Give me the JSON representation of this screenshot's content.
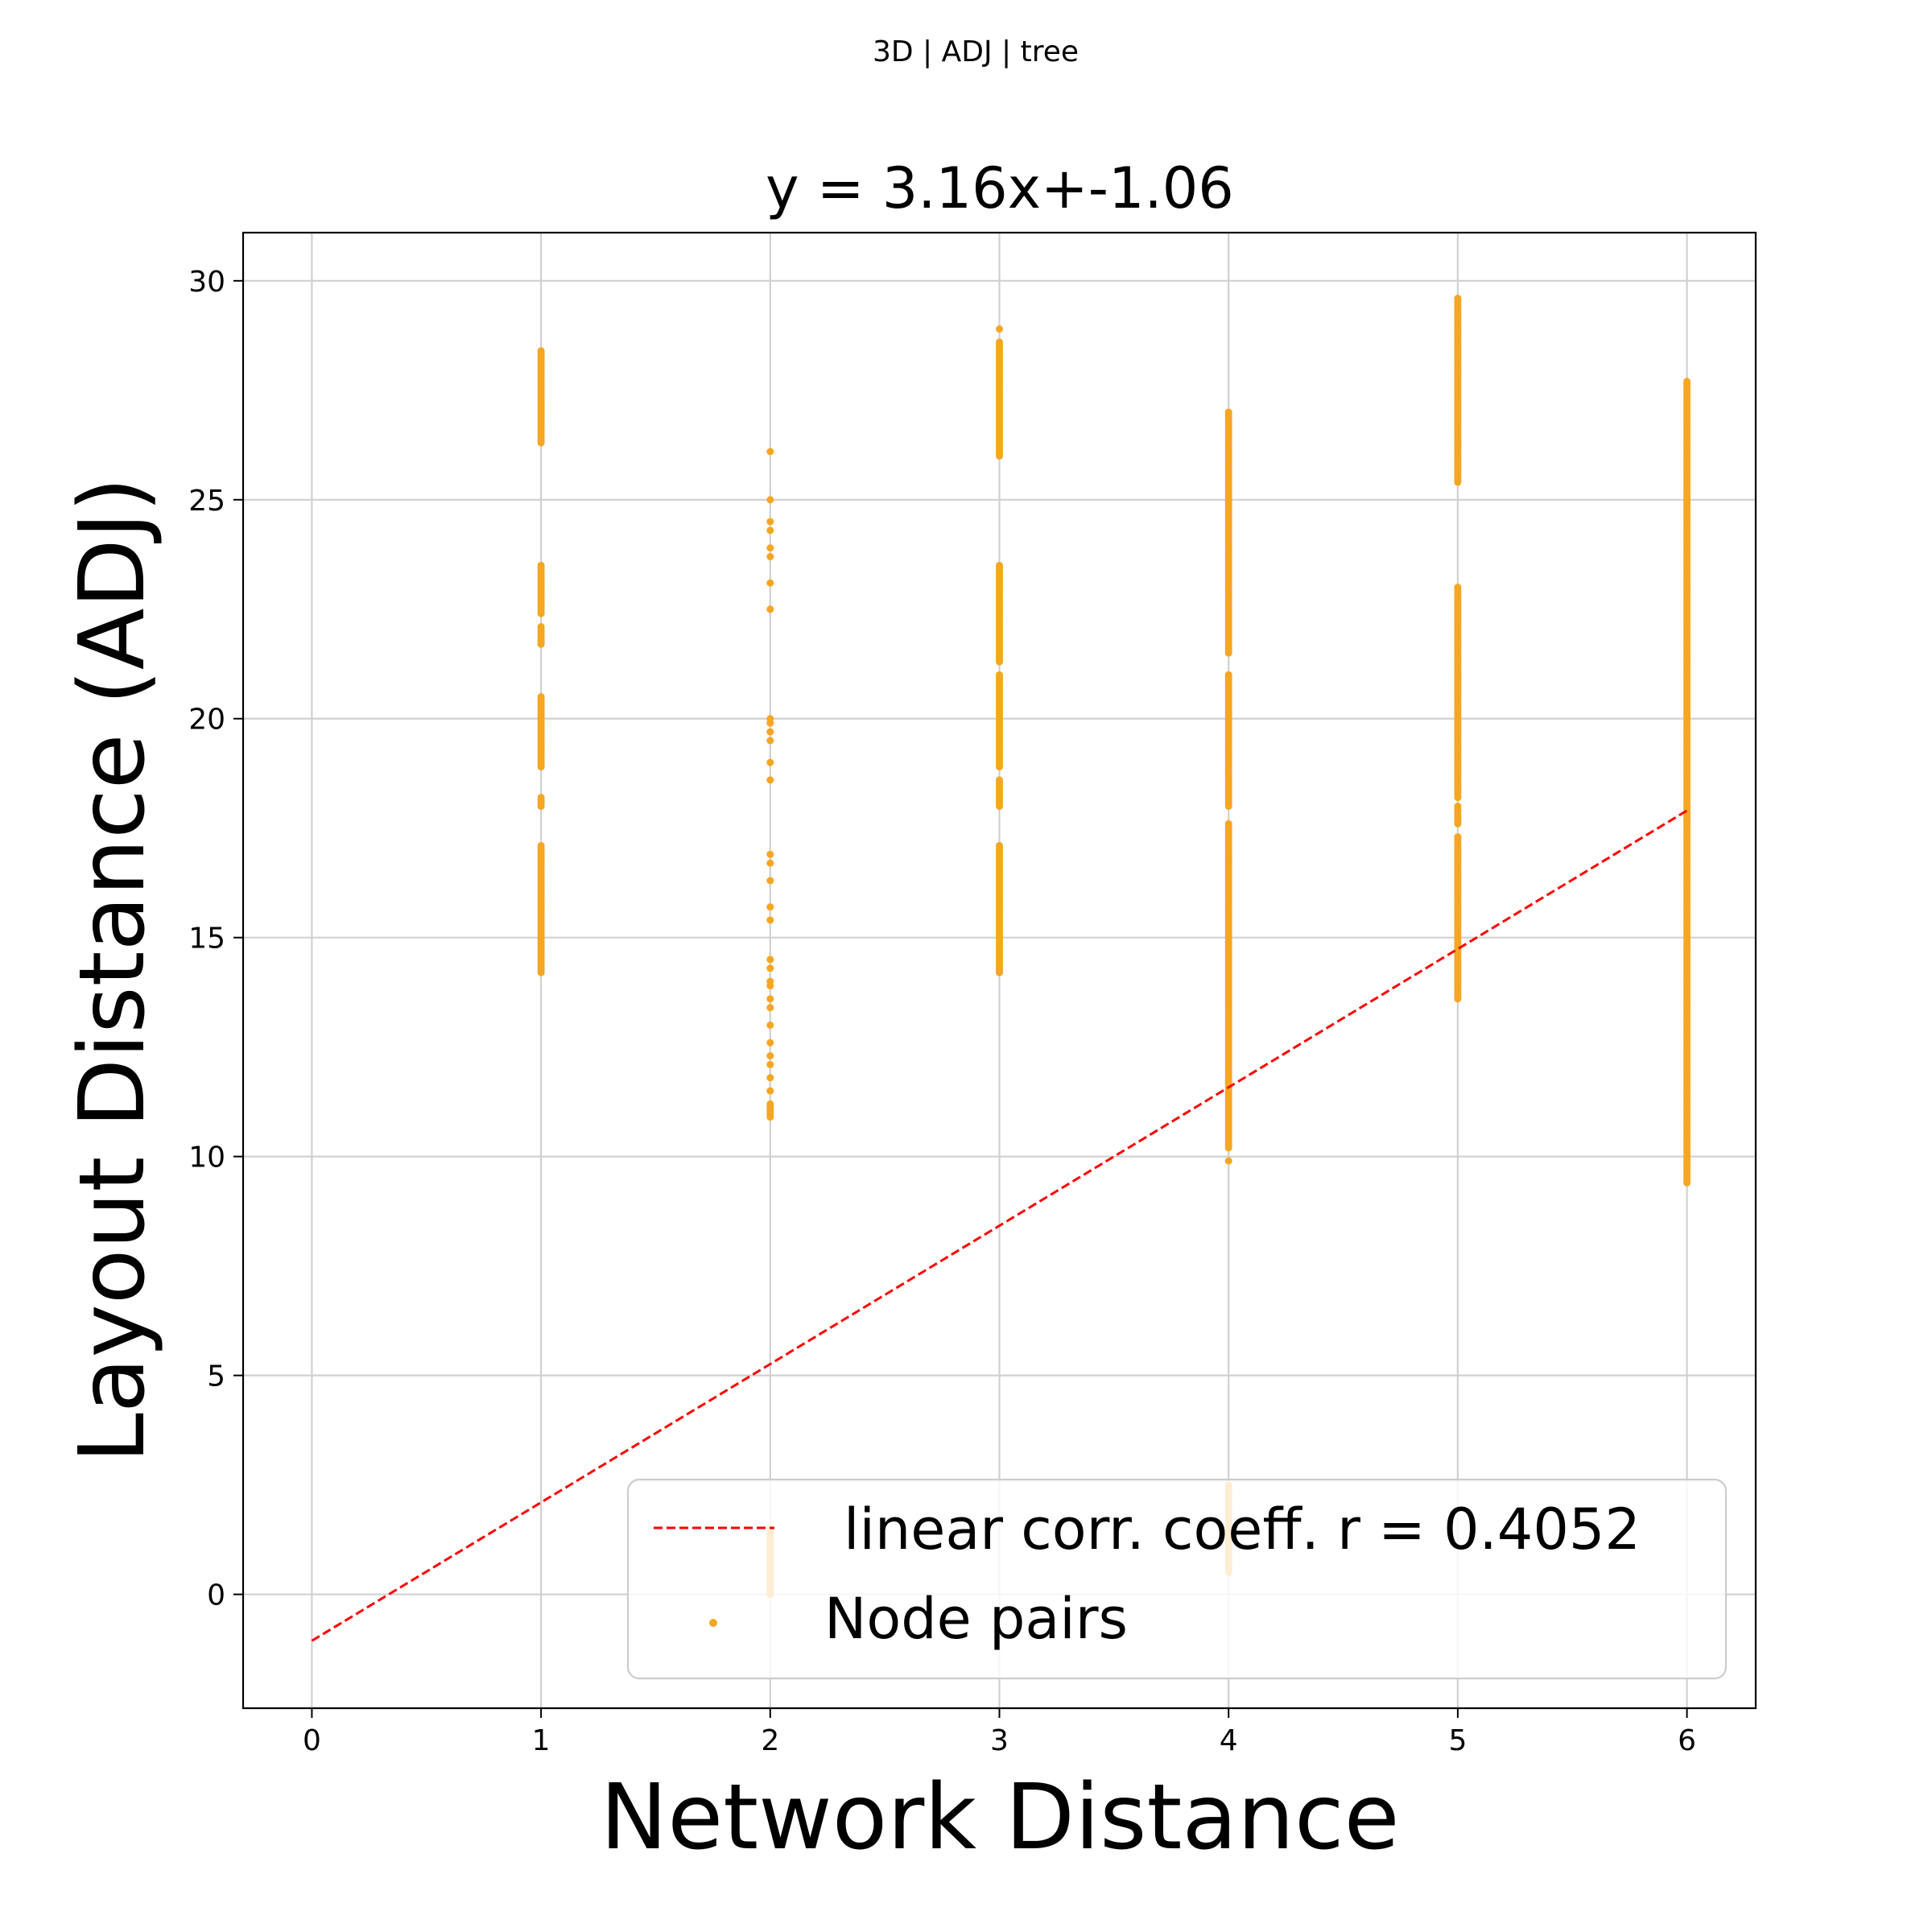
{
  "figure": {
    "suptitle": "3D | ADJ | tree"
  },
  "chart_data": {
    "type": "scatter",
    "title": "y = 3.16x+-1.06",
    "xlabel": "Network Distance",
    "ylabel": "Layout Distance (ADJ)",
    "xlim": [
      -0.3,
      6.3
    ],
    "ylim": [
      -2.6,
      31.1
    ],
    "xticks": [
      0,
      1,
      2,
      3,
      4,
      5,
      6
    ],
    "yticks": [
      0,
      5,
      10,
      15,
      20,
      25,
      30
    ],
    "grid": true,
    "legend_position": "lower-right",
    "colors": {
      "points": "#f5a623",
      "fit": "#ff0000"
    },
    "series": [
      {
        "name": "Node pairs",
        "style": "scatter",
        "columns": [
          {
            "x": 1,
            "ranges": [
              [
                14.2,
                17.1
              ],
              [
                18.0,
                18.2
              ],
              [
                18.9,
                20.5
              ],
              [
                21.7,
                22.1
              ],
              [
                22.4,
                23.5
              ],
              [
                26.3,
                28.4
              ]
            ],
            "points": []
          },
          {
            "x": 2,
            "ranges": [
              [
                0.0,
                1.5
              ],
              [
                10.9,
                11.2
              ]
            ],
            "points": [
              11.5,
              11.8,
              12.1,
              12.3,
              12.6,
              13.0,
              13.4,
              13.6,
              13.9,
              14.0,
              14.3,
              14.5,
              15.4,
              15.7,
              16.3,
              16.7,
              16.9,
              18.6,
              19.0,
              19.5,
              19.7,
              19.9,
              20.0,
              22.5,
              23.1,
              23.7,
              23.9,
              24.3,
              24.5,
              25.0,
              26.1
            ]
          },
          {
            "x": 3,
            "ranges": [
              [
                14.2,
                17.1
              ],
              [
                18.0,
                18.6
              ],
              [
                18.9,
                21.0
              ],
              [
                21.3,
                23.5
              ],
              [
                26.0,
                28.6
              ]
            ],
            "points": [
              28.9
            ]
          },
          {
            "x": 4,
            "ranges": [
              [
                0.5,
                2.5
              ],
              [
                10.2,
                17.6
              ],
              [
                18.0,
                21.0
              ],
              [
                21.5,
                27.0
              ]
            ],
            "points": [
              9.9
            ]
          },
          {
            "x": 5,
            "ranges": [
              [
                13.6,
                17.3
              ],
              [
                17.6,
                18.0
              ],
              [
                18.2,
                23.0
              ],
              [
                25.4,
                29.6
              ]
            ],
            "points": []
          },
          {
            "x": 6,
            "ranges": [
              [
                9.4,
                27.7
              ]
            ],
            "points": []
          }
        ]
      },
      {
        "name": "linear corr. coeff. r = 0.4052",
        "style": "dashed-line",
        "slope": 3.16,
        "intercept": -1.06,
        "x": [
          0,
          6
        ]
      }
    ]
  }
}
